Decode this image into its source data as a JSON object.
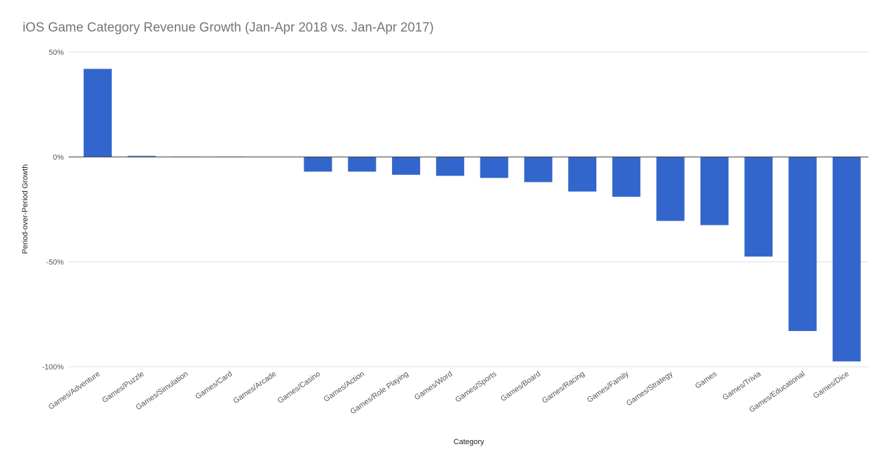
{
  "chart_data": {
    "type": "bar",
    "title": "iOS Game Category Revenue Growth (Jan-Apr 2018 vs. Jan-Apr 2017)",
    "xlabel": "Category",
    "ylabel": "Period-over-Period Growth",
    "ylim": [
      -100,
      50
    ],
    "yticks": [
      50,
      0,
      -50,
      -100
    ],
    "ytick_labels": [
      "50%",
      "0%",
      "-50%",
      "-100%"
    ],
    "categories": [
      "Games/Adventure",
      "Games/Puzzle",
      "Games/Simulation",
      "Games/Card",
      "Games/Arcade",
      "Games/Casino",
      "Games/Action",
      "Games/Role Playing",
      "Games/Word",
      "Games/Sports",
      "Games/Board",
      "Games/Racing",
      "Games/Family",
      "Games/Strategy",
      "Games",
      "Games/Trivia",
      "Games/Educational",
      "Games/Dice"
    ],
    "values": [
      42,
      0.5,
      0.2,
      0.2,
      0,
      -7,
      -7,
      -8.5,
      -9,
      -10,
      -12,
      -16.5,
      -19,
      -30.5,
      -32.5,
      -47.5,
      -83,
      -97.5
    ],
    "grid": true,
    "legend": "none",
    "color": "#3366cc"
  }
}
